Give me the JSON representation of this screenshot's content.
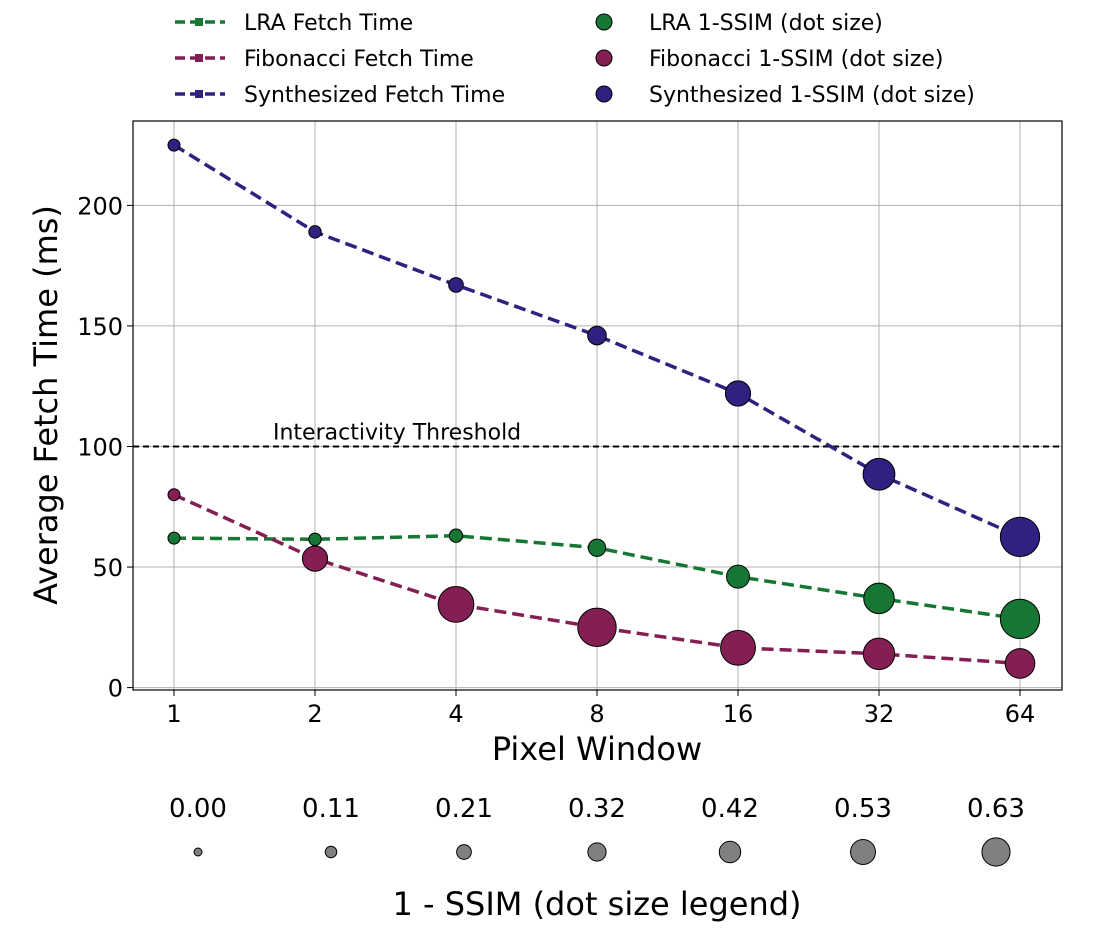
{
  "chart_data": {
    "type": "line",
    "xlabel": "Pixel Window",
    "ylabel": "Average Fetch Time (ms)",
    "categories": [
      "1",
      "2",
      "4",
      "8",
      "16",
      "32",
      "64"
    ],
    "ylim": [
      -1,
      235
    ],
    "yticks": [
      "0",
      "50",
      "100",
      "150",
      "200"
    ],
    "grid": true,
    "series": [
      {
        "name": "LRA Fetch Time",
        "dot_name": "LRA 1-SSIM (dot size)",
        "color": "#167734",
        "values": [
          62,
          61.5,
          63,
          58,
          46,
          37,
          28.5
        ],
        "ssim": [
          0.0,
          0.01,
          0.03,
          0.12,
          0.25,
          0.42,
          0.62
        ]
      },
      {
        "name": "Fibonacci Fetch Time",
        "dot_name": "Fibonacci 1-SSIM (dot size)",
        "color": "#831f52",
        "values": [
          80,
          53.5,
          34.5,
          25,
          16.5,
          14,
          10
        ],
        "ssim": [
          0.0,
          0.3,
          0.54,
          0.6,
          0.52,
          0.44,
          0.4
        ]
      },
      {
        "name": "Synthesized Fetch Time",
        "dot_name": "Synthesized 1-SSIM (dot size)",
        "color": "#2e2180",
        "values": [
          225,
          189,
          167,
          146,
          122,
          88.5,
          62.5
        ],
        "ssim": [
          0.0,
          0.01,
          0.06,
          0.15,
          0.3,
          0.45,
          0.62
        ]
      }
    ],
    "threshold": {
      "value": 100,
      "label": "Interactivity Threshold"
    },
    "size_legend": {
      "title": "1 - SSIM (dot size legend)",
      "values": [
        0.0,
        0.11,
        0.21,
        0.32,
        0.42,
        0.53,
        0.63
      ],
      "labels": [
        "0.00",
        "0.11",
        "0.21",
        "0.32",
        "0.42",
        "0.53",
        "0.63"
      ],
      "color": "#808080"
    }
  }
}
